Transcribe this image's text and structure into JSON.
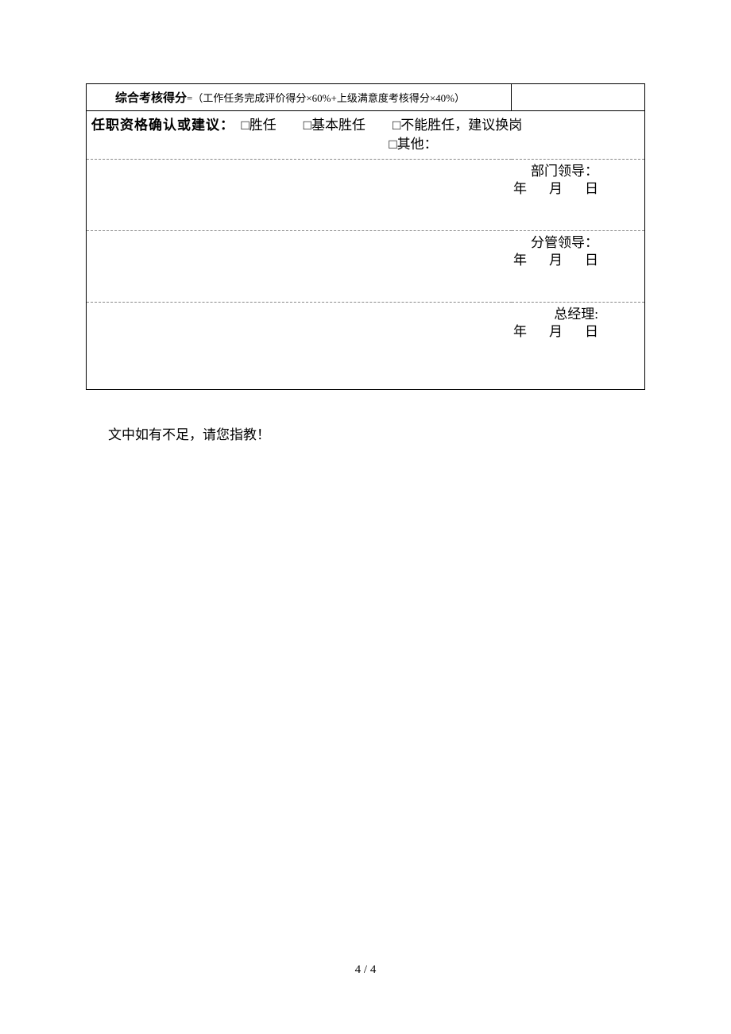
{
  "table": {
    "formula": {
      "label": "综合考核得分",
      "text": "=（工作任务完成评价得分×60%+上级满意度考核得分×40%）"
    },
    "qualification": {
      "label": "任职资格确认或建议：",
      "options_line1": "　□胜任　　□基本胜任　　□不能胜任，建议换岗",
      "options_line2": "□其他："
    },
    "signatures": [
      {
        "title": "部门领导：",
        "date_y": "年",
        "date_m": "月",
        "date_d": "日"
      },
      {
        "title": "分管领导：",
        "date_y": "年",
        "date_m": "月",
        "date_d": "日"
      },
      {
        "title": "总经理:",
        "date_y": "年",
        "date_m": "月",
        "date_d": "日"
      }
    ]
  },
  "footer_note": "文中如有不足，请您指教！",
  "page_number": "4 / 4",
  "colors": {
    "background": "#ffffff",
    "text": "#000000",
    "border": "#000000",
    "dashed": "#888888"
  }
}
